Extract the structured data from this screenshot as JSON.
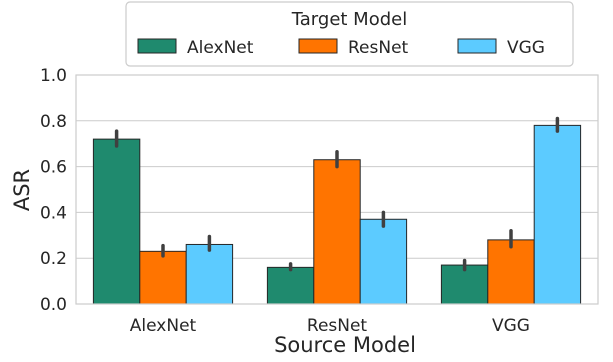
{
  "chart_data": {
    "type": "bar",
    "title": "",
    "xlabel": "Source Model",
    "ylabel": "ASR",
    "categories": [
      "AlexNet",
      "ResNet",
      "VGG"
    ],
    "ylim": [
      0,
      1.0
    ],
    "yticks": [
      "0.0",
      "0.2",
      "0.4",
      "0.6",
      "0.8",
      "1.0"
    ],
    "grid": "horizontal",
    "legend": {
      "title": "Target Model",
      "placement": "top-center, above plot"
    },
    "series": [
      {
        "name": "AlexNet",
        "color": "#1f8a6e",
        "values": [
          0.72,
          0.16,
          0.17
        ],
        "err_low": [
          0.69,
          0.15,
          0.15
        ],
        "err_high": [
          0.755,
          0.175,
          0.19
        ]
      },
      {
        "name": "ResNet",
        "color": "#ff7400",
        "values": [
          0.23,
          0.63,
          0.28
        ],
        "err_low": [
          0.21,
          0.6,
          0.25
        ],
        "err_high": [
          0.255,
          0.665,
          0.32
        ]
      },
      {
        "name": "VGG",
        "color": "#5ccbff",
        "values": [
          0.26,
          0.37,
          0.78
        ],
        "err_low": [
          0.235,
          0.34,
          0.755
        ],
        "err_high": [
          0.295,
          0.4,
          0.81
        ]
      }
    ]
  }
}
